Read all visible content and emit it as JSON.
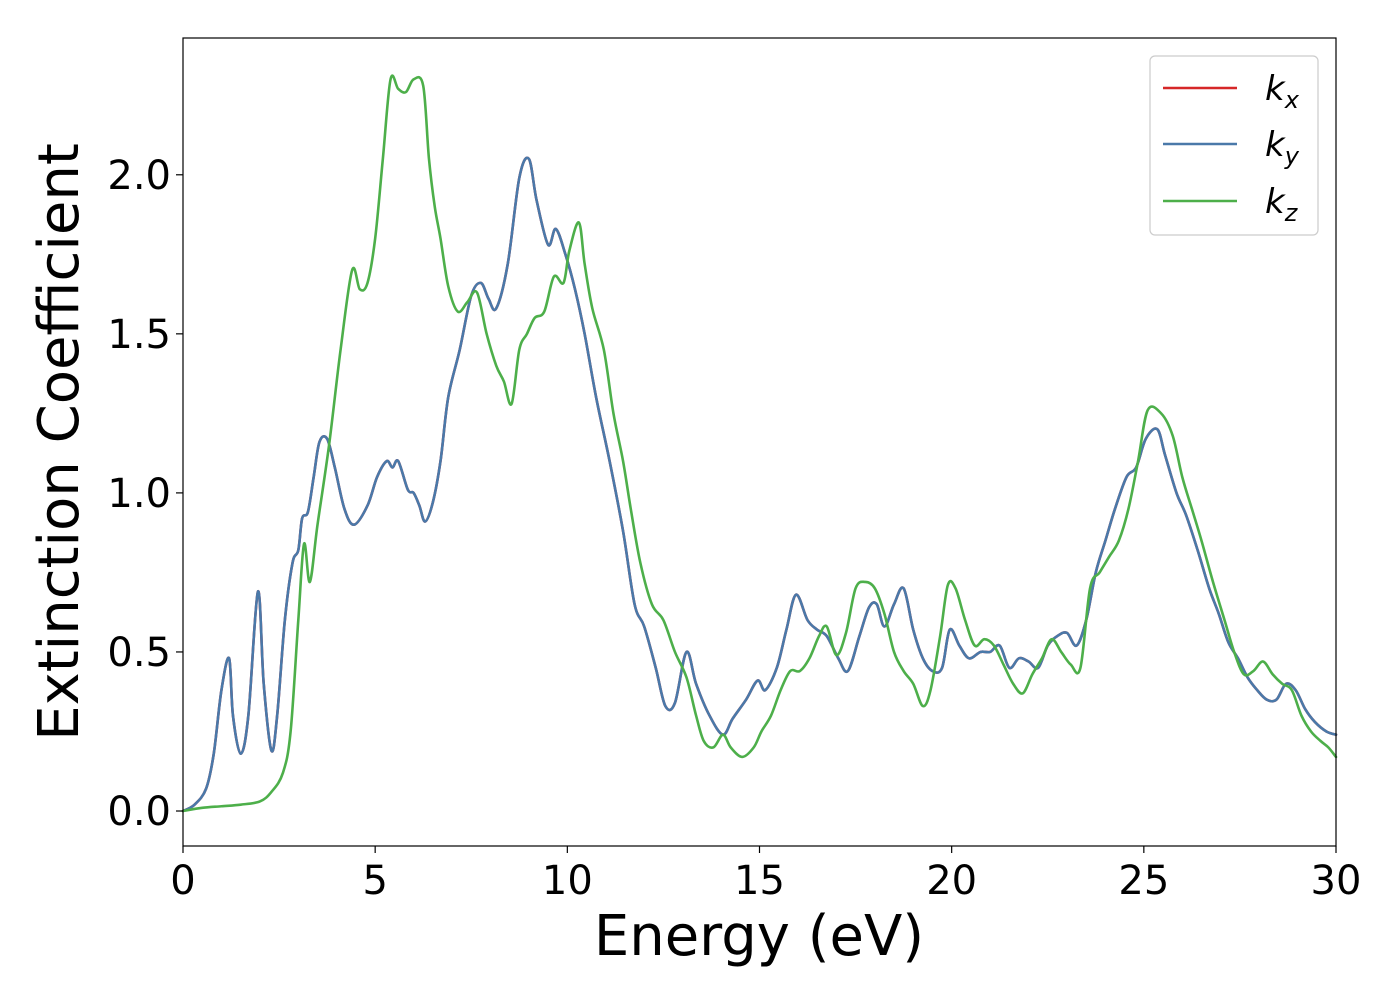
{
  "chart_data": {
    "type": "line",
    "xlabel": "Energy (eV)",
    "ylabel": "Extinction Coefficient",
    "xlim": [
      0,
      30
    ],
    "ylim": [
      -0.11,
      2.43
    ],
    "x_ticks": [
      0,
      5,
      10,
      15,
      20,
      25,
      30
    ],
    "x_tick_labels": [
      "0",
      "5",
      "10",
      "15",
      "20",
      "25",
      "30"
    ],
    "y_ticks": [
      0.0,
      0.5,
      1.0,
      1.5,
      2.0
    ],
    "y_tick_labels": [
      "0.0",
      "0.5",
      "1.0",
      "1.5",
      "2.0"
    ],
    "grid": false,
    "legend": "top-right",
    "series": [
      {
        "name": "k",
        "subscript": "x",
        "color": "#d62728",
        "x": [
          0,
          0.3,
          0.6,
          0.8,
          1.0,
          1.2,
          1.3,
          1.5,
          1.7,
          1.95,
          2.1,
          2.3,
          2.45,
          2.65,
          2.85,
          3.0,
          3.1,
          3.25,
          3.4,
          3.55,
          3.75,
          3.95,
          4.2,
          4.45,
          4.8,
          5.05,
          5.3,
          5.45,
          5.6,
          5.85,
          6.0,
          6.15,
          6.3,
          6.5,
          6.7,
          6.9,
          7.2,
          7.5,
          7.75,
          7.95,
          8.15,
          8.45,
          8.75,
          9.0,
          9.2,
          9.5,
          9.7,
          9.95,
          10.2,
          10.45,
          10.75,
          11.1,
          11.45,
          11.75,
          12.0,
          12.3,
          12.55,
          12.8,
          13.1,
          13.35,
          13.7,
          14.05,
          14.3,
          14.65,
          14.95,
          15.15,
          15.45,
          15.7,
          15.95,
          16.25,
          16.5,
          16.75,
          17.05,
          17.3,
          17.6,
          17.85,
          18.05,
          18.25,
          18.5,
          18.75,
          19.0,
          19.25,
          19.5,
          19.75,
          19.95,
          20.2,
          20.45,
          20.75,
          21.0,
          21.25,
          21.5,
          21.75,
          22.0,
          22.25,
          22.5,
          22.75,
          23.0,
          23.25,
          23.5,
          23.75,
          24.0,
          24.25,
          24.55,
          24.8,
          25.05,
          25.35,
          25.55,
          25.85,
          26.1,
          26.4,
          26.7,
          26.95,
          27.2,
          27.45,
          27.7,
          27.95,
          28.2,
          28.45,
          28.7,
          28.95,
          29.2,
          29.45,
          29.75,
          30.0
        ],
        "y": [
          0,
          0.02,
          0.07,
          0.18,
          0.38,
          0.48,
          0.3,
          0.18,
          0.3,
          0.69,
          0.4,
          0.19,
          0.3,
          0.6,
          0.78,
          0.82,
          0.92,
          0.94,
          1.05,
          1.16,
          1.17,
          1.08,
          0.95,
          0.9,
          0.96,
          1.05,
          1.1,
          1.08,
          1.1,
          1.01,
          1.0,
          0.96,
          0.91,
          0.97,
          1.1,
          1.3,
          1.45,
          1.62,
          1.66,
          1.61,
          1.58,
          1.72,
          1.99,
          2.05,
          1.92,
          1.78,
          1.83,
          1.75,
          1.64,
          1.5,
          1.3,
          1.1,
          0.88,
          0.65,
          0.58,
          0.45,
          0.33,
          0.34,
          0.5,
          0.4,
          0.3,
          0.24,
          0.29,
          0.35,
          0.41,
          0.38,
          0.45,
          0.57,
          0.68,
          0.6,
          0.57,
          0.55,
          0.48,
          0.44,
          0.55,
          0.64,
          0.65,
          0.58,
          0.65,
          0.7,
          0.57,
          0.48,
          0.44,
          0.45,
          0.57,
          0.52,
          0.48,
          0.5,
          0.5,
          0.52,
          0.45,
          0.48,
          0.47,
          0.45,
          0.52,
          0.55,
          0.56,
          0.52,
          0.6,
          0.75,
          0.85,
          0.95,
          1.05,
          1.08,
          1.17,
          1.2,
          1.12,
          1.0,
          0.93,
          0.82,
          0.7,
          0.62,
          0.53,
          0.48,
          0.42,
          0.38,
          0.35,
          0.35,
          0.4,
          0.38,
          0.32,
          0.28,
          0.25,
          0.24
        ]
      },
      {
        "name": "k",
        "subscript": "y",
        "color": "#4a79a9",
        "x": [
          0,
          0.3,
          0.6,
          0.8,
          1.0,
          1.2,
          1.3,
          1.5,
          1.7,
          1.95,
          2.1,
          2.3,
          2.45,
          2.65,
          2.85,
          3.0,
          3.1,
          3.25,
          3.4,
          3.55,
          3.75,
          3.95,
          4.2,
          4.45,
          4.8,
          5.05,
          5.3,
          5.45,
          5.6,
          5.85,
          6.0,
          6.15,
          6.3,
          6.5,
          6.7,
          6.9,
          7.2,
          7.5,
          7.75,
          7.95,
          8.15,
          8.45,
          8.75,
          9.0,
          9.2,
          9.5,
          9.7,
          9.95,
          10.2,
          10.45,
          10.75,
          11.1,
          11.45,
          11.75,
          12.0,
          12.3,
          12.55,
          12.8,
          13.1,
          13.35,
          13.7,
          14.05,
          14.3,
          14.65,
          14.95,
          15.15,
          15.45,
          15.7,
          15.95,
          16.25,
          16.5,
          16.75,
          17.05,
          17.3,
          17.6,
          17.85,
          18.05,
          18.25,
          18.5,
          18.75,
          19.0,
          19.25,
          19.5,
          19.75,
          19.95,
          20.2,
          20.45,
          20.75,
          21.0,
          21.25,
          21.5,
          21.75,
          22.0,
          22.25,
          22.5,
          22.75,
          23.0,
          23.25,
          23.5,
          23.75,
          24.0,
          24.25,
          24.55,
          24.8,
          25.05,
          25.35,
          25.55,
          25.85,
          26.1,
          26.4,
          26.7,
          26.95,
          27.2,
          27.45,
          27.7,
          27.95,
          28.2,
          28.45,
          28.7,
          28.95,
          29.2,
          29.45,
          29.75,
          30.0
        ],
        "y": [
          0,
          0.02,
          0.07,
          0.18,
          0.38,
          0.48,
          0.3,
          0.18,
          0.3,
          0.69,
          0.4,
          0.19,
          0.3,
          0.6,
          0.78,
          0.82,
          0.92,
          0.94,
          1.05,
          1.16,
          1.17,
          1.08,
          0.95,
          0.9,
          0.96,
          1.05,
          1.1,
          1.08,
          1.1,
          1.01,
          1.0,
          0.96,
          0.91,
          0.97,
          1.1,
          1.3,
          1.45,
          1.62,
          1.66,
          1.61,
          1.58,
          1.72,
          1.99,
          2.05,
          1.92,
          1.78,
          1.83,
          1.75,
          1.64,
          1.5,
          1.3,
          1.1,
          0.88,
          0.65,
          0.58,
          0.45,
          0.33,
          0.34,
          0.5,
          0.4,
          0.3,
          0.24,
          0.29,
          0.35,
          0.41,
          0.38,
          0.45,
          0.57,
          0.68,
          0.6,
          0.57,
          0.55,
          0.48,
          0.44,
          0.55,
          0.64,
          0.65,
          0.58,
          0.65,
          0.7,
          0.57,
          0.48,
          0.44,
          0.45,
          0.57,
          0.52,
          0.48,
          0.5,
          0.5,
          0.52,
          0.45,
          0.48,
          0.47,
          0.45,
          0.52,
          0.55,
          0.56,
          0.52,
          0.6,
          0.75,
          0.85,
          0.95,
          1.05,
          1.08,
          1.17,
          1.2,
          1.12,
          1.0,
          0.93,
          0.82,
          0.7,
          0.62,
          0.53,
          0.48,
          0.42,
          0.38,
          0.35,
          0.35,
          0.4,
          0.38,
          0.32,
          0.28,
          0.25,
          0.24
        ]
      },
      {
        "name": "k",
        "subscript": "z",
        "color": "#4daf4a",
        "x": [
          0,
          0.5,
          1.0,
          1.5,
          2.0,
          2.3,
          2.6,
          2.8,
          3.0,
          3.15,
          3.3,
          3.5,
          3.8,
          4.1,
          4.4,
          4.6,
          4.8,
          5.0,
          5.2,
          5.4,
          5.6,
          5.8,
          6.0,
          6.25,
          6.4,
          6.55,
          6.7,
          6.9,
          7.15,
          7.4,
          7.65,
          7.9,
          8.15,
          8.35,
          8.55,
          8.75,
          8.95,
          9.15,
          9.4,
          9.65,
          9.9,
          10.05,
          10.3,
          10.45,
          10.65,
          10.95,
          11.2,
          11.45,
          11.65,
          11.9,
          12.2,
          12.5,
          12.8,
          13.1,
          13.35,
          13.55,
          13.8,
          14.05,
          14.25,
          14.55,
          14.85,
          15.05,
          15.3,
          15.55,
          15.8,
          16.05,
          16.3,
          16.55,
          16.75,
          17.0,
          17.25,
          17.5,
          17.75,
          18.0,
          18.25,
          18.5,
          18.75,
          19.0,
          19.25,
          19.45,
          19.7,
          19.9,
          20.1,
          20.35,
          20.6,
          20.85,
          21.1,
          21.35,
          21.6,
          21.85,
          22.1,
          22.35,
          22.6,
          22.85,
          23.1,
          23.35,
          23.6,
          23.85,
          24.1,
          24.35,
          24.6,
          24.85,
          25.1,
          25.45,
          25.75,
          26.0,
          26.25,
          26.5,
          26.8,
          27.1,
          27.35,
          27.6,
          27.85,
          28.1,
          28.35,
          28.6,
          28.85,
          29.1,
          29.35,
          29.6,
          29.8,
          30.0
        ],
        "y": [
          0,
          0.01,
          0.015,
          0.02,
          0.03,
          0.06,
          0.12,
          0.25,
          0.6,
          0.84,
          0.72,
          0.9,
          1.15,
          1.45,
          1.7,
          1.64,
          1.66,
          1.8,
          2.05,
          2.3,
          2.27,
          2.26,
          2.3,
          2.28,
          2.05,
          1.9,
          1.8,
          1.65,
          1.57,
          1.6,
          1.63,
          1.5,
          1.4,
          1.35,
          1.28,
          1.45,
          1.5,
          1.55,
          1.57,
          1.68,
          1.66,
          1.76,
          1.85,
          1.72,
          1.58,
          1.45,
          1.25,
          1.1,
          0.95,
          0.78,
          0.65,
          0.6,
          0.5,
          0.42,
          0.3,
          0.22,
          0.2,
          0.24,
          0.2,
          0.17,
          0.2,
          0.25,
          0.3,
          0.38,
          0.44,
          0.44,
          0.48,
          0.55,
          0.58,
          0.49,
          0.56,
          0.7,
          0.72,
          0.7,
          0.62,
          0.5,
          0.44,
          0.4,
          0.33,
          0.38,
          0.55,
          0.71,
          0.7,
          0.6,
          0.52,
          0.54,
          0.52,
          0.46,
          0.4,
          0.37,
          0.43,
          0.48,
          0.54,
          0.5,
          0.46,
          0.45,
          0.7,
          0.75,
          0.8,
          0.85,
          0.95,
          1.1,
          1.26,
          1.25,
          1.18,
          1.05,
          0.95,
          0.85,
          0.72,
          0.6,
          0.5,
          0.43,
          0.44,
          0.47,
          0.43,
          0.4,
          0.38,
          0.3,
          0.25,
          0.22,
          0.2,
          0.17
        ]
      }
    ]
  }
}
